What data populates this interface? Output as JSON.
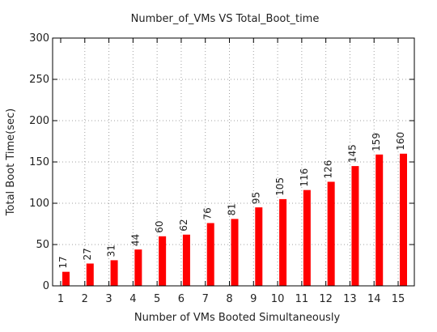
{
  "chart_data": {
    "type": "bar",
    "title": "Number_of_VMs VS Total_Boot_time",
    "xlabel": "Number of VMs Booted Simultaneously",
    "ylabel": "Total Boot Time(sec)",
    "categories": [
      "1",
      "2",
      "3",
      "4",
      "5",
      "6",
      "7",
      "8",
      "9",
      "10",
      "11",
      "12",
      "13",
      "14",
      "15"
    ],
    "values": [
      17,
      27,
      31,
      44,
      60,
      62,
      76,
      81,
      95,
      105,
      116,
      126,
      145,
      159,
      160
    ],
    "ylim": [
      0,
      300
    ],
    "yticks": [
      0,
      50,
      100,
      150,
      200,
      250,
      300
    ],
    "grid": true,
    "bar_color": "#ff0000",
    "grid_color": "#a0a0a0",
    "axis_color": "#000000"
  }
}
